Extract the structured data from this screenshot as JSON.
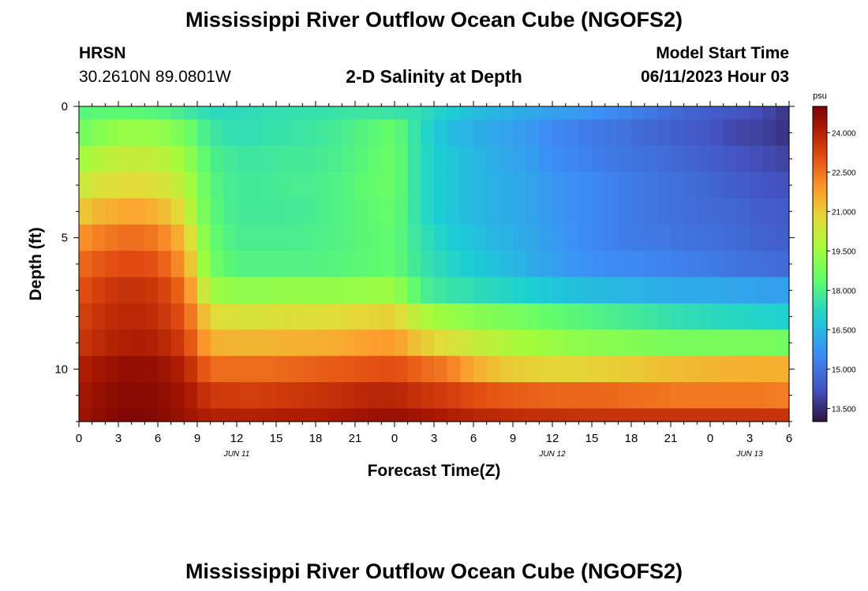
{
  "page": {
    "title": "Mississippi River Outflow Ocean Cube (NGOFS2)",
    "footer_title": "Mississippi River Outflow Ocean Cube (NGOFS2)",
    "station": {
      "name": "HRSN",
      "coords": "30.2610N  89.0801W"
    },
    "subtitle": "2-D Salinity at Depth",
    "model_start": {
      "label": "Model Start Time",
      "value": "06/11/2023 Hour 03"
    }
  },
  "chart_data": {
    "type": "heatmap",
    "title": "2-D Salinity at Depth",
    "xlabel": "Forecast Time(Z)",
    "ylabel": "Depth (ft)",
    "x_start_hour": 0,
    "x_end_hour": 54,
    "x_tick_labels": [
      "0",
      "3",
      "6",
      "9",
      "12",
      "15",
      "18",
      "21",
      "0",
      "3",
      "6",
      "9",
      "12",
      "15",
      "18",
      "21",
      "0",
      "3",
      "6"
    ],
    "date_labels": [
      {
        "label": "JUN 11",
        "hour": 12
      },
      {
        "label": "JUN 12",
        "hour": 36
      },
      {
        "label": "JUN 13",
        "hour": 51
      }
    ],
    "y_tick_labels": [
      "0",
      "5",
      "10"
    ],
    "ylim": [
      0,
      12
    ],
    "y_ticks": [
      0,
      5,
      10
    ],
    "colorbar": {
      "unit": "psu",
      "min": 13.0,
      "max": 25.0,
      "tick_labels": [
        "24.000",
        "22.500",
        "21.000",
        "19.500",
        "18.000",
        "16.500",
        "15.000",
        "13.500"
      ],
      "tick_values": [
        24.0,
        22.5,
        21.0,
        19.5,
        18.0,
        16.5,
        15.0,
        13.5
      ]
    },
    "layers": [
      {
        "depth": 0,
        "salinity": [
          18.2,
          18.3,
          18.3,
          18.2,
          17.8,
          17.3,
          17.3,
          17.4,
          17.5,
          17.5,
          17.6,
          17.7,
          17.6,
          17.4,
          17.0,
          16.6,
          16.4,
          16.2,
          16.0,
          15.9,
          15.6,
          15.3,
          15.0,
          14.7,
          14.5,
          14.3,
          14.1,
          13.6
        ]
      },
      {
        "depth": 1,
        "salinity": [
          18.6,
          19.2,
          19.4,
          19.3,
          18.8,
          17.7,
          17.4,
          17.5,
          17.6,
          17.7,
          17.9,
          18.2,
          18.5,
          17.3,
          16.6,
          16.3,
          16.1,
          15.9,
          15.5,
          15.3,
          15.1,
          14.9,
          14.7,
          14.5,
          14.3,
          14.0,
          13.9,
          13.6
        ]
      },
      {
        "depth": 2,
        "salinity": [
          19.5,
          20.0,
          20.2,
          20.1,
          19.5,
          18.0,
          17.7,
          17.7,
          17.8,
          17.8,
          18.0,
          18.3,
          18.6,
          17.3,
          16.8,
          16.5,
          16.2,
          16.0,
          15.6,
          15.4,
          15.2,
          15.0,
          14.9,
          14.7,
          14.5,
          14.3,
          14.1,
          13.9
        ]
      },
      {
        "depth": 3,
        "salinity": [
          20.2,
          20.6,
          20.7,
          20.6,
          20.0,
          18.2,
          17.8,
          17.8,
          17.9,
          17.9,
          18.1,
          18.4,
          18.6,
          17.3,
          16.8,
          16.5,
          16.3,
          16.1,
          15.8,
          15.6,
          15.4,
          15.2,
          15.0,
          14.9,
          14.7,
          14.5,
          14.3,
          14.2
        ]
      },
      {
        "depth": 4,
        "salinity": [
          21.0,
          21.5,
          21.7,
          21.5,
          20.5,
          18.3,
          17.8,
          17.8,
          17.8,
          17.9,
          18.1,
          18.3,
          18.5,
          17.3,
          16.8,
          16.5,
          16.3,
          16.1,
          15.8,
          15.6,
          15.4,
          15.2,
          15.0,
          14.9,
          14.8,
          14.7,
          14.5,
          14.4
        ]
      },
      {
        "depth": 5,
        "salinity": [
          22.0,
          22.4,
          22.6,
          22.4,
          21.3,
          18.5,
          17.9,
          17.9,
          17.9,
          18.0,
          18.1,
          18.3,
          18.4,
          17.5,
          17.0,
          16.7,
          16.4,
          16.2,
          15.9,
          15.6,
          15.4,
          15.2,
          15.1,
          15.0,
          14.9,
          14.8,
          14.6,
          14.5
        ]
      },
      {
        "depth": 6,
        "salinity": [
          22.6,
          23.0,
          23.2,
          23.0,
          21.9,
          18.7,
          18.1,
          18.1,
          18.1,
          18.1,
          18.2,
          18.3,
          18.4,
          17.6,
          17.2,
          16.9,
          16.6,
          16.3,
          16.0,
          15.7,
          15.6,
          15.5,
          15.4,
          15.3,
          15.2,
          15.0,
          14.9,
          14.8
        ]
      },
      {
        "depth": 7,
        "salinity": [
          23.0,
          23.5,
          23.7,
          23.5,
          22.6,
          19.5,
          19.2,
          19.2,
          19.3,
          19.3,
          19.3,
          19.4,
          19.5,
          18.0,
          17.6,
          17.4,
          17.2,
          17.0,
          16.8,
          16.6,
          16.5,
          16.4,
          16.3,
          16.2,
          16.2,
          16.1,
          16.0,
          16.0
        ]
      },
      {
        "depth": 8,
        "salinity": [
          23.3,
          23.7,
          23.9,
          23.7,
          23.0,
          20.7,
          20.5,
          20.5,
          20.6,
          20.6,
          20.7,
          20.8,
          20.9,
          19.8,
          19.4,
          19.1,
          18.9,
          18.7,
          18.4,
          18.2,
          18.0,
          17.8,
          17.6,
          17.4,
          17.3,
          17.2,
          17.1,
          17.0
        ]
      },
      {
        "depth": 9,
        "salinity": [
          23.5,
          23.9,
          24.1,
          24.0,
          23.4,
          21.5,
          21.4,
          21.4,
          21.5,
          21.5,
          21.6,
          21.8,
          21.9,
          21.0,
          20.6,
          20.2,
          19.9,
          19.6,
          19.4,
          19.2,
          19.1,
          19.0,
          18.9,
          18.8,
          18.8,
          18.8,
          18.8,
          18.7
        ]
      },
      {
        "depth": 10,
        "salinity": [
          24.0,
          24.4,
          24.6,
          24.5,
          24.0,
          22.6,
          22.6,
          22.6,
          22.7,
          22.8,
          22.9,
          23.0,
          23.1,
          22.7,
          22.4,
          21.6,
          21.1,
          20.9,
          20.8,
          20.8,
          20.9,
          21.0,
          21.2,
          21.3,
          21.4,
          21.5,
          21.5,
          21.5
        ]
      },
      {
        "depth": 11,
        "salinity": [
          24.2,
          24.6,
          24.8,
          24.7,
          24.3,
          23.5,
          23.4,
          23.4,
          23.5,
          23.6,
          23.7,
          23.9,
          23.9,
          23.6,
          23.4,
          23.1,
          22.9,
          22.8,
          22.7,
          22.7,
          22.7,
          22.6,
          22.5,
          22.4,
          22.4,
          22.4,
          22.4,
          22.3
        ]
      },
      {
        "depth": 12,
        "salinity": [
          24.3,
          24.7,
          24.9,
          24.8,
          24.4,
          24.0,
          24.0,
          24.0,
          24.1,
          24.1,
          24.2,
          24.4,
          24.5,
          24.3,
          24.1,
          23.9,
          23.8,
          23.7,
          23.7,
          23.6,
          23.6,
          23.6,
          23.6,
          23.6,
          23.6,
          23.6,
          23.6,
          23.6
        ]
      }
    ]
  }
}
